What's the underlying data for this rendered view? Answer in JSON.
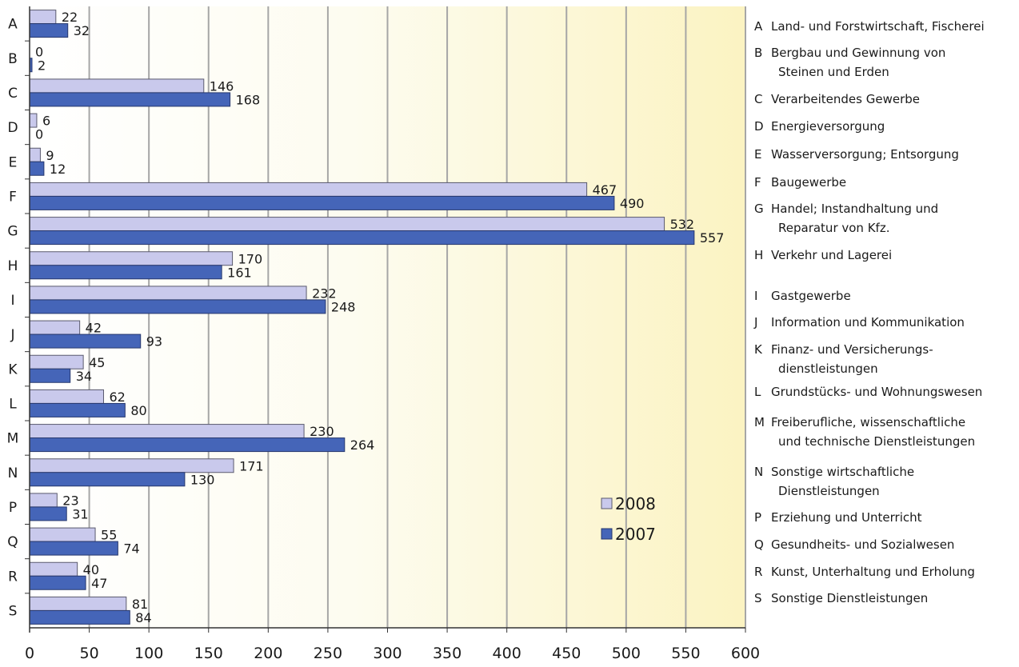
{
  "chart_data": {
    "type": "bar",
    "orientation": "horizontal",
    "categories": [
      "A",
      "B",
      "C",
      "D",
      "E",
      "F",
      "G",
      "H",
      "I",
      "J",
      "K",
      "L",
      "M",
      "N",
      "P",
      "Q",
      "R",
      "S"
    ],
    "series": [
      {
        "name": "2008",
        "color": "#c9c9ec",
        "values": [
          22,
          0,
          146,
          6,
          9,
          467,
          532,
          170,
          232,
          42,
          45,
          62,
          230,
          171,
          23,
          55,
          40,
          81
        ]
      },
      {
        "name": "2007",
        "color": "#4565b8",
        "values": [
          32,
          2,
          168,
          0,
          12,
          490,
          557,
          161,
          248,
          93,
          34,
          80,
          264,
          130,
          31,
          74,
          47,
          84
        ]
      }
    ],
    "xlim": [
      0,
      600
    ],
    "xticks": [
      0,
      50,
      100,
      150,
      200,
      250,
      300,
      350,
      400,
      450,
      500,
      550,
      600
    ],
    "grid": true,
    "legend_position": "bottom-right inside plot",
    "background": "horizontal gradient from white to pale yellow",
    "category_legend": [
      {
        "code": "A",
        "lines": [
          "Land- und Forstwirtschaft, Fischerei"
        ]
      },
      {
        "code": "B",
        "lines": [
          "Bergbau und Gewinnung von",
          "Steinen und Erden"
        ]
      },
      {
        "code": "C",
        "lines": [
          "Verarbeitendes Gewerbe"
        ]
      },
      {
        "code": "D",
        "lines": [
          "Energieversorgung"
        ]
      },
      {
        "code": "E",
        "lines": [
          "Wasserversorgung; Entsorgung"
        ]
      },
      {
        "code": "F",
        "lines": [
          "Baugewerbe"
        ]
      },
      {
        "code": "G",
        "lines": [
          "Handel; Instandhaltung und",
          "Reparatur von Kfz."
        ]
      },
      {
        "code": "H",
        "lines": [
          "Verkehr und Lagerei"
        ]
      },
      {
        "code": "I",
        "lines": [
          "Gastgewerbe"
        ]
      },
      {
        "code": "J",
        "lines": [
          "Information und Kommunikation"
        ]
      },
      {
        "code": "K",
        "lines": [
          "Finanz- und Versicherungs-",
          "dienstleistungen"
        ]
      },
      {
        "code": "L",
        "lines": [
          "Grundstücks- und Wohnungswesen"
        ]
      },
      {
        "code": "M",
        "lines": [
          "Freiberufliche, wissenschaftliche",
          "und technische Dienstleistungen"
        ]
      },
      {
        "code": "N",
        "lines": [
          "Sonstige wirtschaftliche",
          "Dienstleistungen"
        ]
      },
      {
        "code": "P",
        "lines": [
          "Erziehung und Unterricht"
        ]
      },
      {
        "code": "Q",
        "lines": [
          "Gesundheits- und Sozialwesen"
        ]
      },
      {
        "code": "R",
        "lines": [
          "Kunst, Unterhaltung und Erholung"
        ]
      },
      {
        "code": "S",
        "lines": [
          "Sonstige Dienstleistungen"
        ]
      }
    ]
  }
}
